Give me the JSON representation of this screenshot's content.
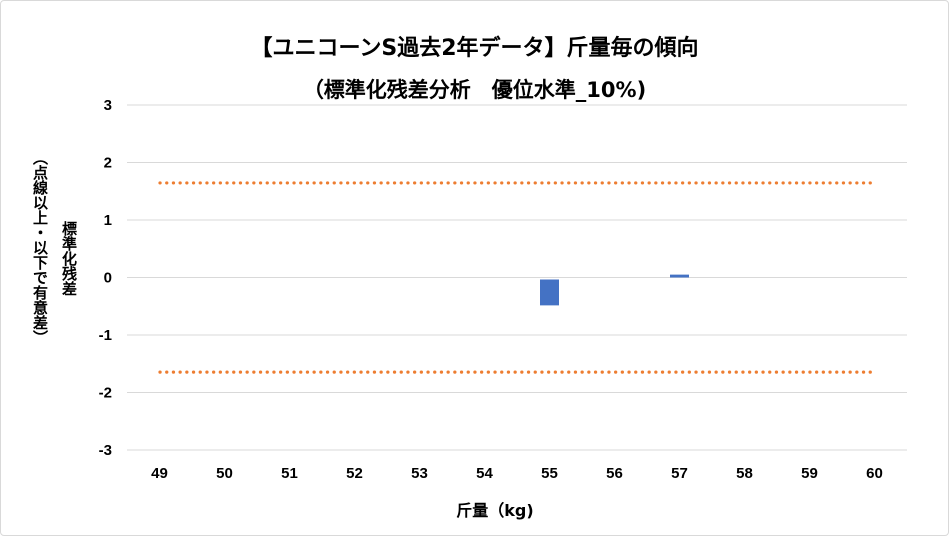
{
  "chart_data": {
    "type": "bar",
    "title": "【ユニコーンS過去2年データ】斤量毎の傾向",
    "subtitle": "（標準化残差分析　優位水準_10%)",
    "xlabel": "斤量（kg)",
    "ylabel": "標準化残差",
    "ylabel_note": "（点線以上・以下で有意差）",
    "categories": [
      "49",
      "50",
      "51",
      "52",
      "53",
      "54",
      "55",
      "56",
      "57",
      "58",
      "59",
      "60"
    ],
    "values": [
      null,
      null,
      null,
      null,
      null,
      null,
      -0.45,
      null,
      0.05,
      null,
      null,
      null
    ],
    "ylim": [
      -3,
      3
    ],
    "yticks": [
      3,
      2,
      1,
      0,
      -1,
      -2,
      -3
    ],
    "thresholds": [
      1.645,
      -1.645
    ],
    "grid": true,
    "legend": "none",
    "colors": {
      "bar": "#4472c4",
      "threshold": "#ed7d31",
      "grid": "#d9d9d9"
    }
  }
}
